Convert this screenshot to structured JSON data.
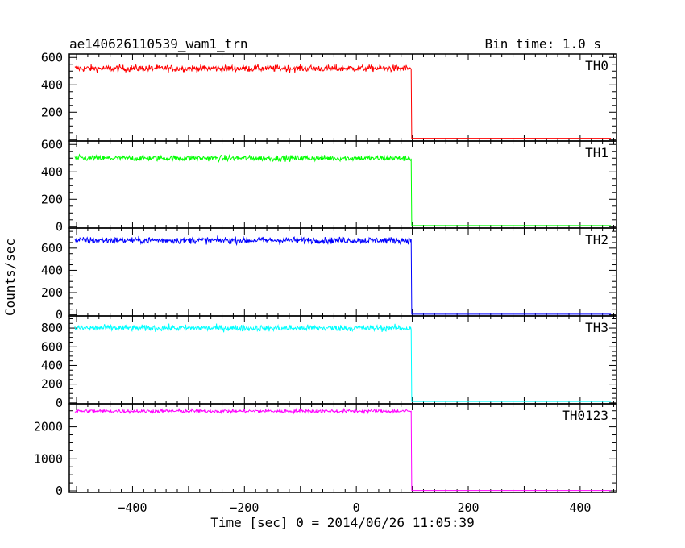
{
  "header": {
    "title": "ae140626110539_wam1_trn",
    "bin_time": "Bin time: 1.0 s"
  },
  "axes": {
    "ylabel": "Counts/sec",
    "xlabel": "Time [sec] 0 = 2014/06/26 11:05:39",
    "x_ticks": [
      -400,
      -200,
      0,
      200,
      400
    ],
    "xlim": [
      -513,
      465
    ]
  },
  "chart_data": [
    {
      "type": "line",
      "name": "TH0",
      "color": "#ff0000",
      "x_range": [
        -503,
        455
      ],
      "ylim": [
        -10,
        625
      ],
      "y_ticks": [
        0,
        200,
        400,
        600
      ],
      "y_tick_labels": [
        "",
        "200",
        "400",
        "600"
      ],
      "segments": [
        {
          "x_start": -503,
          "x_end": 98,
          "mean": 520,
          "noise": 30
        },
        {
          "x_start": 98,
          "x_end": 455,
          "mean": 10,
          "noise": 0
        }
      ]
    },
    {
      "type": "line",
      "name": "TH1",
      "color": "#00ff00",
      "x_range": [
        -503,
        455
      ],
      "ylim": [
        -10,
        625
      ],
      "y_ticks": [
        0,
        200,
        400,
        600
      ],
      "y_tick_labels": [
        "0",
        "200",
        "400",
        "600"
      ],
      "segments": [
        {
          "x_start": -503,
          "x_end": 98,
          "mean": 500,
          "noise": 25
        },
        {
          "x_start": 98,
          "x_end": 455,
          "mean": 8,
          "noise": 0
        }
      ]
    },
    {
      "type": "line",
      "name": "TH2",
      "color": "#0000ff",
      "x_range": [
        -503,
        455
      ],
      "ylim": [
        -10,
        780
      ],
      "y_ticks": [
        0,
        200,
        400,
        600
      ],
      "y_tick_labels": [
        "0",
        "200",
        "400",
        "600"
      ],
      "segments": [
        {
          "x_start": -503,
          "x_end": 98,
          "mean": 670,
          "noise": 35
        },
        {
          "x_start": 98,
          "x_end": 455,
          "mean": 5,
          "noise": 0
        }
      ]
    },
    {
      "type": "line",
      "name": "TH3",
      "color": "#00ffff",
      "x_range": [
        -503,
        455
      ],
      "ylim": [
        -10,
        930
      ],
      "y_ticks": [
        0,
        200,
        400,
        600,
        800
      ],
      "y_tick_labels": [
        "0",
        "200",
        "400",
        "600",
        "800"
      ],
      "segments": [
        {
          "x_start": -503,
          "x_end": 98,
          "mean": 800,
          "noise": 40
        },
        {
          "x_start": 98,
          "x_end": 455,
          "mean": 15,
          "noise": 0
        }
      ]
    },
    {
      "type": "line",
      "name": "TH0123",
      "color": "#ff00ff",
      "x_range": [
        -503,
        455
      ],
      "ylim": [
        -50,
        2720
      ],
      "y_ticks": [
        0,
        1000,
        2000
      ],
      "y_tick_labels": [
        "0",
        "1000",
        "2000"
      ],
      "segments": [
        {
          "x_start": -503,
          "x_end": 98,
          "mean": 2490,
          "noise": 70
        },
        {
          "x_start": 98,
          "x_end": 455,
          "mean": 10,
          "noise": 0
        }
      ]
    }
  ]
}
